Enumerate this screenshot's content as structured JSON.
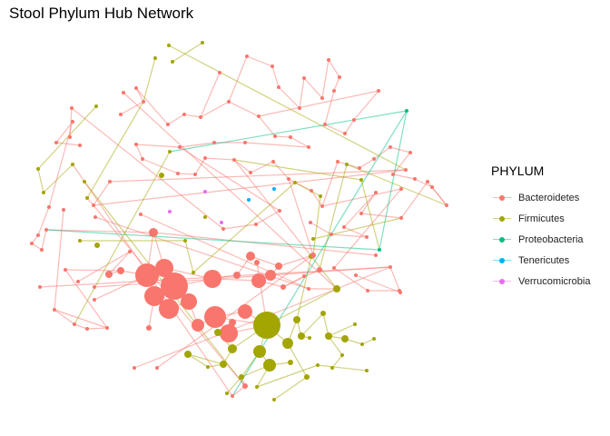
{
  "title": "Stool Phylum Hub Network",
  "legend": {
    "title": "PHYLUM",
    "items": [
      {
        "label": "Bacteroidetes",
        "color": "#F8766D"
      },
      {
        "label": "Firmicutes",
        "color": "#A3A500"
      },
      {
        "label": "Proteobacteria",
        "color": "#00BF7D"
      },
      {
        "label": "Tenericutes",
        "color": "#00B0F6"
      },
      {
        "label": "Verrucomicrobia",
        "color": "#E76BF3"
      }
    ]
  }
}
